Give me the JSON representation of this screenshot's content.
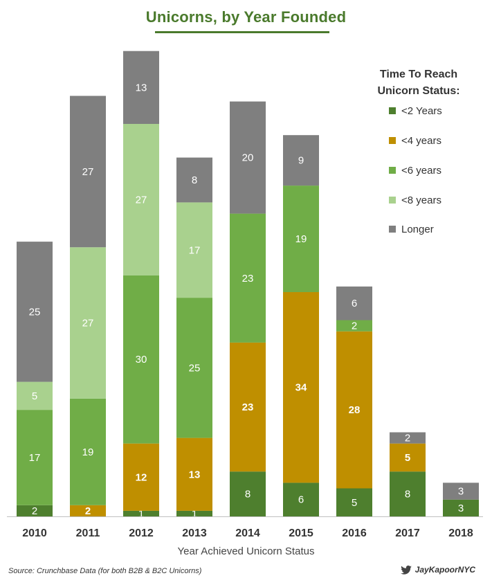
{
  "chart_data": {
    "type": "bar",
    "stacked": true,
    "title": "Unicorns, by Year Founded",
    "xlabel": "Year Achieved Unicorn Status",
    "ylabel": "",
    "categories": [
      "2010",
      "2011",
      "2012",
      "2013",
      "2014",
      "2015",
      "2016",
      "2017",
      "2018"
    ],
    "series": [
      {
        "name": "<2 Years",
        "color": "#4e7f2e",
        "values": [
          2,
          null,
          1,
          1,
          8,
          6,
          5,
          8,
          3
        ],
        "labels": [
          "2",
          "",
          "1",
          "1",
          "8",
          "6",
          "5",
          "8",
          "3"
        ]
      },
      {
        "name": "<4 years",
        "color": "#bf8f00",
        "values": [
          null,
          2,
          12,
          13,
          23,
          34,
          28,
          5,
          null
        ],
        "labels": [
          "",
          "2",
          "12",
          "13",
          "23",
          "34",
          "28",
          "5",
          ""
        ]
      },
      {
        "name": "<6 years",
        "color": "#70ad47",
        "values": [
          17,
          19,
          30,
          25,
          23,
          19,
          2,
          null,
          null
        ],
        "labels": [
          "17",
          "19",
          "30",
          "25",
          "23",
          "19",
          "2",
          "",
          ""
        ]
      },
      {
        "name": "<8 years",
        "color": "#a9d18e",
        "values": [
          5,
          27,
          27,
          17,
          null,
          null,
          null,
          null,
          null
        ],
        "labels": [
          "5",
          "27",
          "27",
          "17",
          "",
          "",
          "",
          "",
          ""
        ]
      },
      {
        "name": "Longer",
        "color": "#7f7f7f",
        "values": [
          25,
          27,
          13,
          8,
          20,
          9,
          6,
          2,
          3
        ],
        "labels": [
          "25",
          "27",
          "13",
          "8",
          "20",
          "9",
          "6",
          "2",
          "3"
        ]
      }
    ],
    "legend": {
      "title_line1": "Time To Reach",
      "title_line2": "Unicorn Status:",
      "position": "top-right"
    },
    "grid": false
  },
  "footer": {
    "source": "Source: Crunchbase Data (for both B2B & B2C Unicorns)",
    "handle": "JayKapoorNYC",
    "handle_icon": "twitter-bird-icon"
  }
}
